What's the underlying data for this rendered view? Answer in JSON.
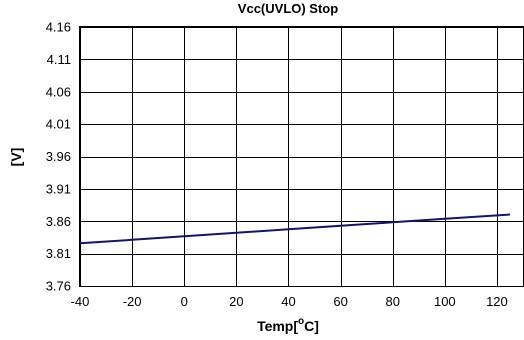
{
  "chart_data": {
    "type": "line",
    "title": "Vcc(UVLO) Stop",
    "xlabel": "Temp[",
    "xlabel_sup": "o",
    "xlabel_tail": "C]",
    "ylabel": "[V]",
    "xlim": [
      -40,
      130
    ],
    "ylim": [
      3.76,
      4.16
    ],
    "x_ticks": [
      -40,
      -20,
      0,
      20,
      40,
      60,
      80,
      100,
      120
    ],
    "y_ticks": [
      "3.76",
      "3.81",
      "3.86",
      "3.91",
      "3.96",
      "4.01",
      "4.06",
      "4.11",
      "4.16"
    ],
    "grid": true,
    "series": [
      {
        "color": "#14146e",
        "x": [
          -40,
          -20,
          0,
          20,
          40,
          60,
          80,
          100,
          125
        ],
        "y": [
          3.826,
          3.8314,
          3.8368,
          3.8422,
          3.8476,
          3.853,
          3.8584,
          3.8638,
          3.8705
        ]
      }
    ]
  }
}
